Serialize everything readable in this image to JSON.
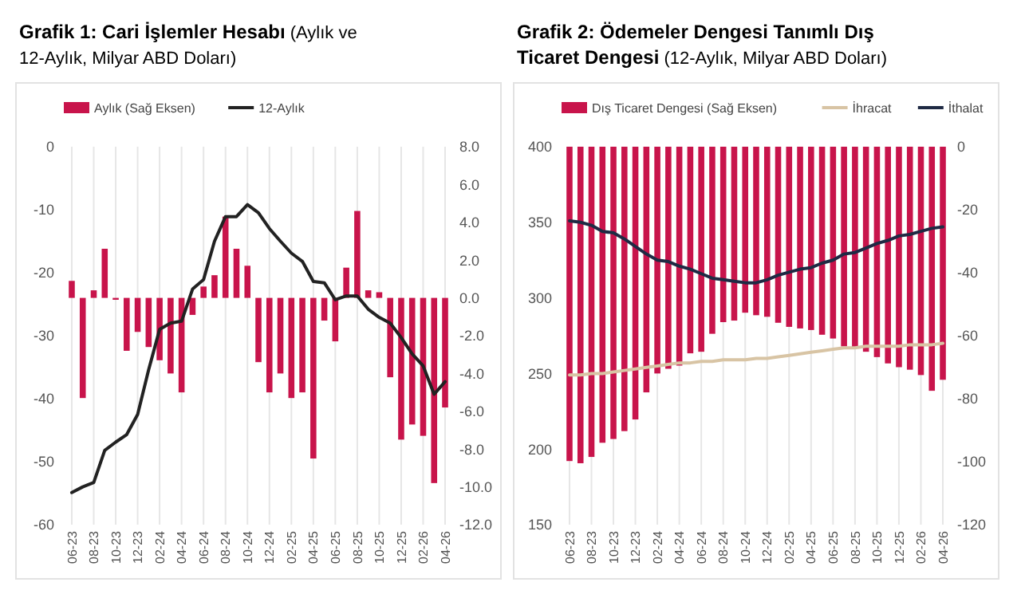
{
  "chart_data": [
    {
      "type": "bar",
      "title": "Grafik 1: Cari İşlemler Hesabı",
      "subtitle": "(Aylık ve 12-Aylık, Milyar ABD Doları)",
      "categories": [
        "06-23",
        null,
        "08-23",
        null,
        "10-23",
        null,
        "12-23",
        null,
        "02-24",
        null,
        "04-24",
        null,
        "06-24",
        null,
        "08-24",
        null,
        "10-24",
        null,
        "12-24",
        null,
        "02-25",
        null,
        "04-25",
        null,
        "06-25",
        null,
        "08-25",
        null,
        "10-25",
        null,
        "12-25",
        null,
        "02-26",
        null,
        "04-26"
      ],
      "series": [
        {
          "name": "Aylık (Sağ Eksen)",
          "axis": "y2",
          "color": "#c8144b",
          "values": [
            0.9,
            -5.3,
            0.4,
            2.6,
            -0.1,
            -2.8,
            -1.8,
            -2.6,
            -3.3,
            -4.0,
            -5.0,
            -0.9,
            0.6,
            1.2,
            4.3,
            2.6,
            1.7,
            -3.4,
            -5.0,
            -4.0,
            -5.3,
            -5.0,
            -8.5,
            -1.2,
            -2.3,
            1.6,
            4.6,
            0.4,
            0.3,
            -4.2,
            -7.5,
            -6.7,
            -7.3,
            -9.8,
            -5.8
          ]
        },
        {
          "name": "12-Aylık",
          "type": "line",
          "color": "#222222",
          "values": [
            -54.9,
            -54.0,
            -53.3,
            -48.2,
            -46.9,
            -45.7,
            -42.5,
            -35.4,
            -29.0,
            -28.0,
            -27.7,
            -22.6,
            -21.1,
            -15.0,
            -11.1,
            -11.1,
            -9.2,
            -10.5,
            -13.0,
            -15.0,
            -16.9,
            -18.2,
            -21.4,
            -21.6,
            -24.3,
            -23.7,
            -23.7,
            -25.8,
            -27.1,
            -28.0,
            -30.3,
            -32.9,
            -34.8,
            -39.3,
            -37.3
          ]
        }
      ],
      "ylim": [
        -60,
        0
      ],
      "yticks": [
        -60,
        -50,
        -40,
        -30,
        -20,
        -10,
        0
      ],
      "y2lim": [
        -12,
        8
      ],
      "y2ticks": [
        {
          "value": -12,
          "label": "-12.0"
        },
        {
          "value": -10,
          "label": "-10.0"
        },
        {
          "value": -8,
          "label": "-8.0"
        },
        {
          "value": -6,
          "label": "-6.0"
        },
        {
          "value": -4,
          "label": "-4.0"
        },
        {
          "value": -2,
          "label": "-2.0"
        },
        {
          "value": 0,
          "label": "0.0"
        },
        {
          "value": 2,
          "label": "2.0"
        },
        {
          "value": 4,
          "label": "4.0"
        },
        {
          "value": 6,
          "label": "6.0"
        },
        {
          "value": 8,
          "label": "8.0"
        }
      ],
      "grid": "x",
      "legend": "top"
    },
    {
      "type": "bar",
      "title": "Grafik 2: Ödemeler Dengesi Tanımlı Dış Ticaret Dengesi",
      "subtitle": "(12-Aylık, Milyar ABD Doları)",
      "categories": [
        "06-23",
        null,
        "08-23",
        null,
        "10-23",
        null,
        "12-23",
        null,
        "02-24",
        null,
        "04-24",
        null,
        "06-24",
        null,
        "08-24",
        null,
        "10-24",
        null,
        "12-24",
        null,
        "02-25",
        null,
        "04-25",
        null,
        "06-25",
        null,
        "08-25",
        null,
        "10-25",
        null,
        "12-25",
        null,
        "02-26",
        null,
        "04-26"
      ],
      "series": [
        {
          "name": "Dış Ticaret Dengesi (Sağ Eksen)",
          "axis": "y2",
          "color": "#c8144b",
          "values": [
            -99.8,
            -100.5,
            -98.5,
            -94.0,
            -92.8,
            -90.3,
            -86.6,
            -78.0,
            -72.0,
            -70.5,
            -69.5,
            -65.6,
            -65.1,
            -59.4,
            -55.7,
            -55.2,
            -52.7,
            -53.5,
            -54.0,
            -55.9,
            -57.2,
            -57.7,
            -58.2,
            -59.7,
            -60.9,
            -63.4,
            -63.9,
            -65.1,
            -66.8,
            -68.8,
            -70.0,
            -70.8,
            -72.5,
            -77.5,
            -74.0
          ]
        },
        {
          "name": "İhracat",
          "type": "line",
          "color": "#d8c4a4",
          "values": [
            249,
            249,
            250,
            250,
            251,
            252,
            253,
            254,
            255,
            256,
            257,
            257,
            258,
            258,
            259,
            259,
            259,
            260,
            260,
            261,
            262,
            263,
            264,
            265,
            266,
            267,
            267,
            268,
            268,
            268,
            268,
            269,
            269,
            269,
            270
          ]
        },
        {
          "name": "İthalat",
          "type": "line",
          "color": "#1f2a44",
          "values": [
            351,
            350,
            348,
            344,
            343,
            339,
            334,
            329,
            325,
            324,
            321,
            319,
            316,
            313,
            312,
            311,
            310,
            310,
            312,
            315,
            317,
            319,
            320,
            323,
            325,
            329,
            330,
            333,
            336,
            338,
            341,
            342,
            344,
            346,
            347
          ]
        }
      ],
      "ylim": [
        150,
        400
      ],
      "yticks": [
        150,
        200,
        250,
        300,
        350,
        400
      ],
      "y2lim": [
        -120,
        0
      ],
      "y2ticks": [
        -120,
        -100,
        -80,
        -60,
        -40,
        -20,
        0
      ],
      "grid": "x",
      "legend": "top"
    }
  ]
}
